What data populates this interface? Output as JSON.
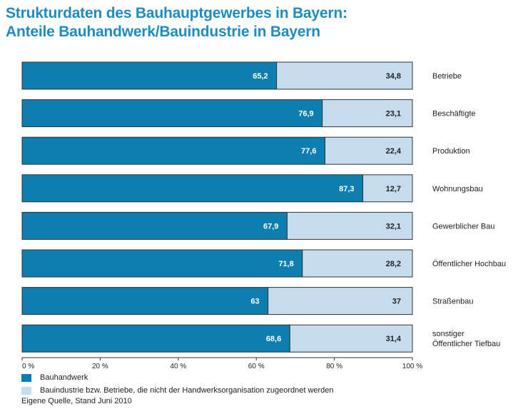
{
  "title": {
    "line1": "Strukturdaten des Bauhauptgewerbes in Bayern:",
    "line2": "Anteile Bauhandwerk/Bauindustrie in Bayern"
  },
  "colors": {
    "bauhandwerk": "#0c7eb0",
    "bauindustrie": "#c4dcee",
    "title": "#1c8cc2",
    "border": "#333333"
  },
  "chart_data": {
    "type": "bar",
    "orientation": "horizontal",
    "stacked": true,
    "percent_stacked": true,
    "categories": [
      "Betriebe",
      "Beschäftigte",
      "Produktion",
      "Wohnungsbau",
      "Gewerblicher Bau",
      "Öffentlicher Hochbau",
      "Straßenbau",
      "sonstiger Öffentlicher Tiefbau"
    ],
    "series": [
      {
        "name": "Bauhandwerk",
        "values": [
          65.2,
          76.9,
          77.6,
          87.3,
          67.9,
          71.8,
          63,
          68.6
        ],
        "labels": [
          "65,2",
          "76,9",
          "77,6",
          "87,3",
          "67,9",
          "71,8",
          "63",
          "68,6"
        ]
      },
      {
        "name": "Bauindustrie bzw. Betriebe, die nicht der Handwerksorganisation zugeordnet werden",
        "values": [
          34.8,
          23.1,
          22.4,
          12.7,
          32.1,
          28.2,
          37,
          31.4
        ],
        "labels": [
          "34,8",
          "23,1",
          "22,4",
          "12,7",
          "32,1",
          "28,2",
          "37",
          "31,4"
        ]
      }
    ],
    "xlim": [
      0,
      100
    ],
    "xticks": [
      "0 %",
      "20 %",
      "40 %",
      "60 %",
      "80 %",
      "100 %"
    ],
    "xtick_values": [
      0,
      20,
      40,
      60,
      80,
      100
    ],
    "legend_position": "bottom-left",
    "grid": false
  },
  "source": "Eigene Quelle, Stand Juni 2010"
}
